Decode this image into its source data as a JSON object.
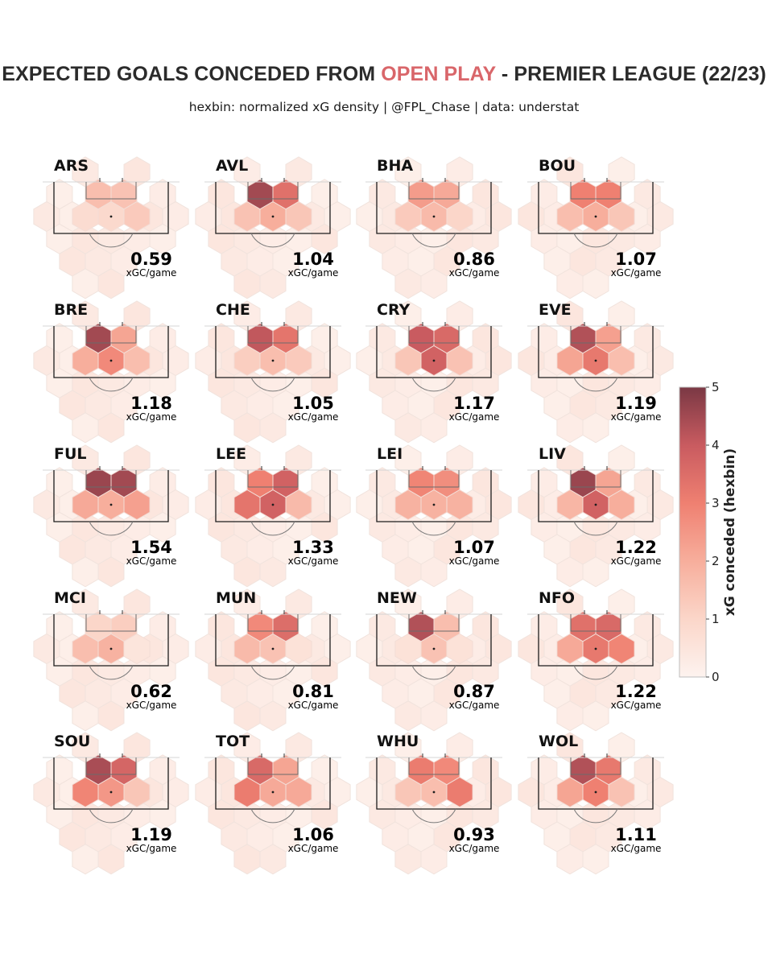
{
  "title": {
    "prefix": "EXPECTED GOALS CONCEDED FROM ",
    "highlight": "OPEN PLAY",
    "suffix": " - PREMIER LEAGUE (22/23)"
  },
  "subtitle": "hexbin: normalized xG density | @FPL_Chase | data: understat",
  "colors": {
    "highlight": "#d9666a",
    "scale_low": "#fdf3ef",
    "scale_mid": "#f0857a",
    "scale_high": "#7a3844"
  },
  "chart_data": {
    "type": "heatmap",
    "description_unit": "xGC/game",
    "hex_cells": [
      "top_left",
      "top_right",
      "center",
      "mid_left",
      "mid_right"
    ],
    "teams": [
      {
        "name": "ARS",
        "value": "0.59",
        "unit": "xGC/game",
        "hex": [
          1.6,
          1.5,
          0.9,
          0.8,
          1.3
        ]
      },
      {
        "name": "AVL",
        "value": "1.04",
        "unit": "xGC/game",
        "hex": [
          4.5,
          3.4,
          2.0,
          1.5,
          1.4
        ]
      },
      {
        "name": "BHA",
        "value": "0.86",
        "unit": "xGC/game",
        "hex": [
          2.4,
          2.1,
          1.7,
          1.3,
          1.0
        ]
      },
      {
        "name": "BOU",
        "value": "1.07",
        "unit": "xGC/game",
        "hex": [
          3.0,
          3.0,
          2.0,
          1.6,
          1.4
        ]
      },
      {
        "name": "BRE",
        "value": "1.18",
        "unit": "xGC/game",
        "hex": [
          4.5,
          2.2,
          2.8,
          2.0,
          1.6
        ]
      },
      {
        "name": "CHE",
        "value": "1.05",
        "unit": "xGC/game",
        "hex": [
          4.1,
          3.3,
          1.6,
          1.2,
          1.3
        ]
      },
      {
        "name": "CRY",
        "value": "1.17",
        "unit": "xGC/game",
        "hex": [
          4.0,
          3.6,
          3.8,
          1.4,
          1.5
        ]
      },
      {
        "name": "EVE",
        "value": "1.19",
        "unit": "xGC/game",
        "hex": [
          4.3,
          2.3,
          3.2,
          2.2,
          1.6
        ]
      },
      {
        "name": "FUL",
        "value": "1.54",
        "unit": "xGC/game",
        "hex": [
          4.6,
          4.5,
          2.0,
          2.1,
          2.3
        ]
      },
      {
        "name": "LEE",
        "value": "1.33",
        "unit": "xGC/game",
        "hex": [
          3.0,
          3.8,
          3.8,
          3.3,
          1.7
        ]
      },
      {
        "name": "LEI",
        "value": "1.07",
        "unit": "xGC/game",
        "hex": [
          2.9,
          2.7,
          1.9,
          1.9,
          1.9
        ]
      },
      {
        "name": "LIV",
        "value": "1.22",
        "unit": "xGC/game",
        "hex": [
          4.6,
          2.2,
          3.8,
          1.8,
          2.0
        ]
      },
      {
        "name": "MCI",
        "value": "0.62",
        "unit": "xGC/game",
        "hex": [
          1.0,
          1.2,
          1.9,
          1.6,
          0.5
        ]
      },
      {
        "name": "MUN",
        "value": "0.81",
        "unit": "xGC/game",
        "hex": [
          2.8,
          3.5,
          1.5,
          1.7,
          0.6
        ]
      },
      {
        "name": "NEW",
        "value": "0.87",
        "unit": "xGC/game",
        "hex": [
          4.3,
          1.6,
          1.5,
          0.6,
          0.6
        ]
      },
      {
        "name": "NFO",
        "value": "1.22",
        "unit": "xGC/game",
        "hex": [
          3.4,
          3.6,
          3.2,
          2.1,
          2.9
        ]
      },
      {
        "name": "SOU",
        "value": "1.19",
        "unit": "xGC/game",
        "hex": [
          4.4,
          3.7,
          2.5,
          2.9,
          1.4
        ]
      },
      {
        "name": "TOT",
        "value": "1.06",
        "unit": "xGC/game",
        "hex": [
          3.6,
          2.2,
          2.1,
          3.1,
          2.1
        ]
      },
      {
        "name": "WHU",
        "value": "0.93",
        "unit": "xGC/game",
        "hex": [
          3.1,
          2.8,
          1.6,
          1.4,
          3.1
        ]
      },
      {
        "name": "WOL",
        "value": "1.11",
        "unit": "xGC/game",
        "hex": [
          4.3,
          3.2,
          3.0,
          2.2,
          1.5
        ]
      }
    ],
    "colorbar": {
      "ticks": [
        "0",
        "1",
        "2",
        "3",
        "4",
        "5"
      ],
      "label": "xG conceded (hexbin)",
      "range": [
        0,
        5
      ]
    }
  }
}
